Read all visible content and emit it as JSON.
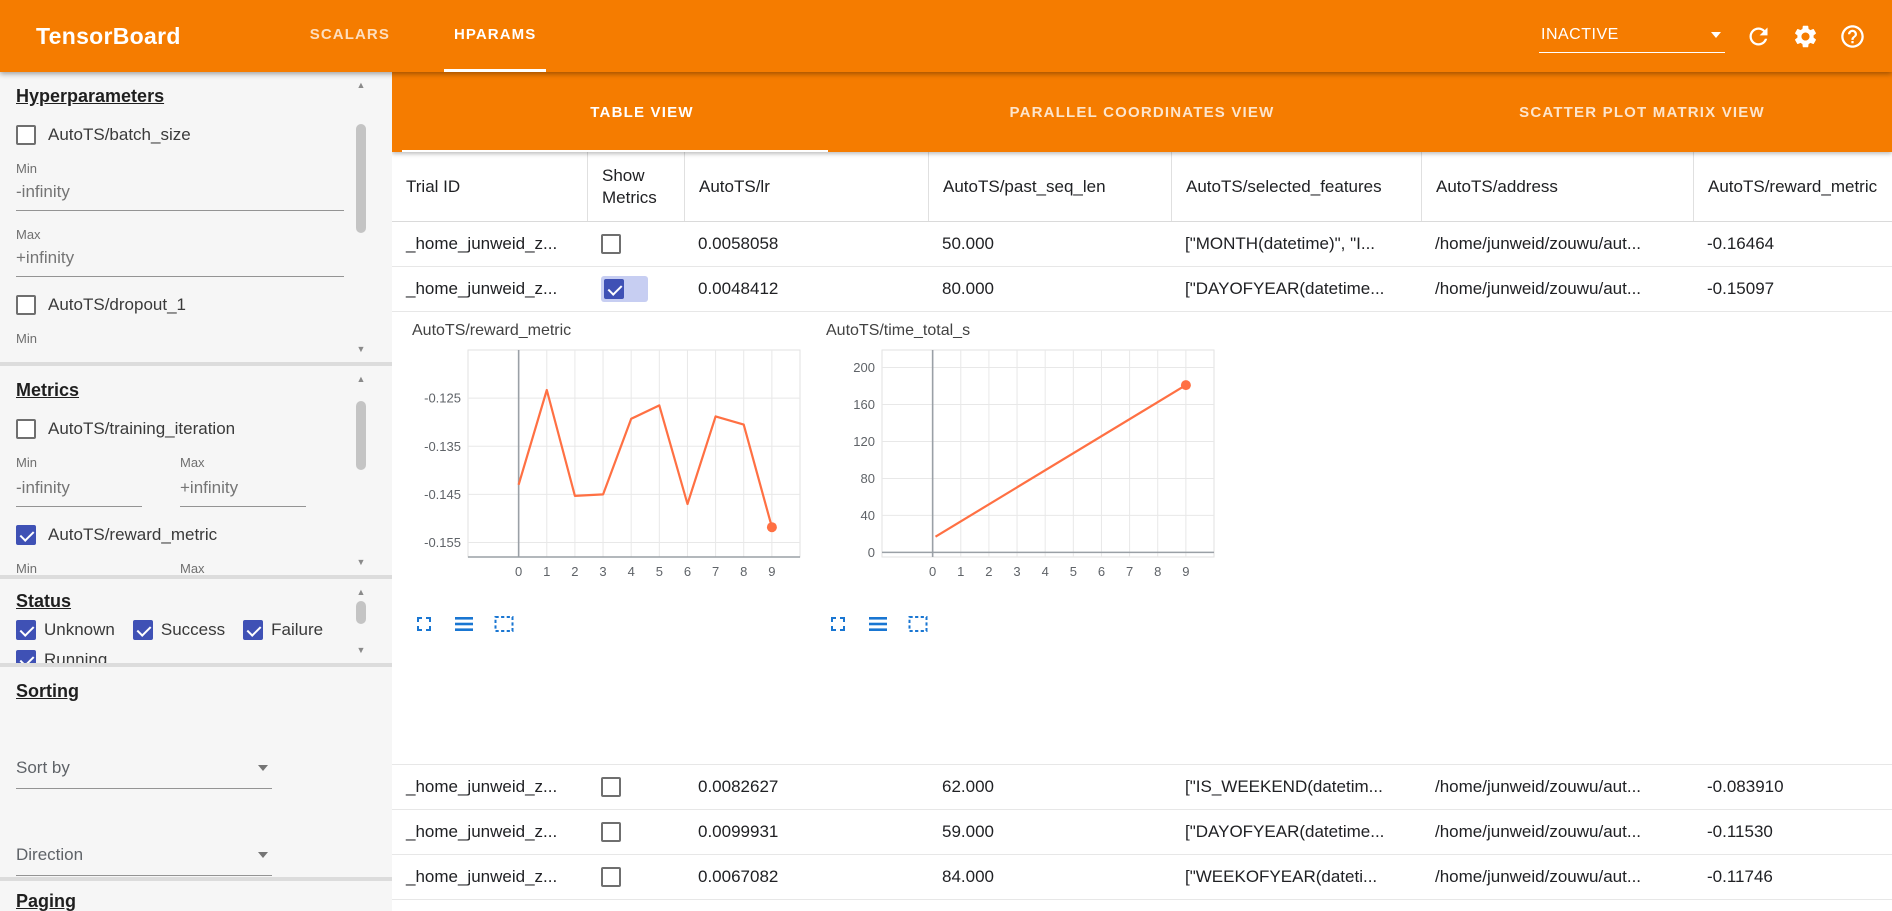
{
  "topbar": {
    "title": "TensorBoard",
    "tabs": [
      {
        "label": "SCALARS",
        "active": false
      },
      {
        "label": "HPARAMS",
        "active": true
      }
    ],
    "run_status": "INACTIVE"
  },
  "icons": {
    "topbar": [
      "chevron-down-icon",
      "reload-icon",
      "settings-gear-icon",
      "help-icon"
    ],
    "chart_actions": [
      "fullscreen-icon",
      "overview-lines-icon",
      "dashed-selection-box-icon"
    ]
  },
  "sidebar": {
    "hyperparameters": {
      "title": "Hyperparameters",
      "items": [
        {
          "label": "AutoTS/batch_size",
          "checked": false
        },
        {
          "label": "AutoTS/dropout_1",
          "checked": false
        }
      ],
      "min_label": "Min",
      "max_label": "Max",
      "min_value": "-infinity",
      "max_value": "+infinity"
    },
    "metrics": {
      "title": "Metrics",
      "items": [
        {
          "label": "AutoTS/training_iteration",
          "checked": false
        },
        {
          "label": "AutoTS/reward_metric",
          "checked": true
        }
      ],
      "min_label": "Min",
      "max_label": "Max",
      "min_value": "-infinity",
      "max_value": "+infinity"
    },
    "status": {
      "title": "Status",
      "items": [
        {
          "label": "Unknown",
          "checked": true
        },
        {
          "label": "Success",
          "checked": true
        },
        {
          "label": "Failure",
          "checked": true
        },
        {
          "label": "Running",
          "checked": true
        }
      ]
    },
    "sorting": {
      "title": "Sorting",
      "sort_by_label": "Sort by",
      "direction_label": "Direction"
    },
    "paging": {
      "title": "Paging"
    }
  },
  "main": {
    "view_tabs": [
      {
        "label": "TABLE VIEW",
        "active": true
      },
      {
        "label": "PARALLEL COORDINATES VIEW",
        "active": false
      },
      {
        "label": "SCATTER PLOT MATRIX VIEW",
        "active": false
      }
    ],
    "table": {
      "columns": [
        "Trial ID",
        "Show Metrics",
        "AutoTS/lr",
        "AutoTS/past_seq_len",
        "AutoTS/selected_features",
        "AutoTS/address",
        "AutoTS/reward_metric"
      ],
      "rows": [
        {
          "trial_id": "_home_junweid_z...",
          "show_metrics": false,
          "lr": "0.0058058",
          "past_seq_len": "50.000",
          "selected_features": "[\"MONTH(datetime)\", \"I...",
          "address": "/home/junweid/zouwu/aut...",
          "reward_metric": "-0.16464"
        },
        {
          "trial_id": "_home_junweid_z...",
          "show_metrics": true,
          "lr": "0.0048412",
          "past_seq_len": "80.000",
          "selected_features": "[\"DAYOFYEAR(datetime...",
          "address": "/home/junweid/zouwu/aut...",
          "reward_metric": "-0.15097"
        },
        {
          "trial_id": "_home_junweid_z...",
          "show_metrics": false,
          "lr": "0.0082627",
          "past_seq_len": "62.000",
          "selected_features": "[\"IS_WEEKEND(datetim...",
          "address": "/home/junweid/zouwu/aut...",
          "reward_metric": "-0.083910"
        },
        {
          "trial_id": "_home_junweid_z...",
          "show_metrics": false,
          "lr": "0.0099931",
          "past_seq_len": "59.000",
          "selected_features": "[\"DAYOFYEAR(datetime...",
          "address": "/home/junweid/zouwu/aut...",
          "reward_metric": "-0.11530"
        },
        {
          "trial_id": "_home_junweid_z...",
          "show_metrics": false,
          "lr": "0.0067082",
          "past_seq_len": "84.000",
          "selected_features": "[\"WEEKOFYEAR(dateti...",
          "address": "/home/junweid/zouwu/aut...",
          "reward_metric": "-0.11746"
        }
      ]
    }
  },
  "chart_data": [
    {
      "type": "line",
      "title": "AutoTS/reward_metric",
      "x": [
        0,
        1,
        2,
        3,
        4,
        5,
        6,
        7,
        8,
        9
      ],
      "values": [
        -0.143,
        -0.1233,
        -0.1453,
        -0.145,
        -0.1293,
        -0.1265,
        -0.147,
        -0.1288,
        -0.1305,
        -0.1518
      ],
      "xlim": [
        -1.8,
        10
      ],
      "ylim": [
        -0.158,
        -0.115
      ],
      "xticks": [
        0,
        1,
        2,
        3,
        4,
        5,
        6,
        7,
        8,
        9
      ],
      "yticks": [
        -0.125,
        -0.135,
        -0.145,
        -0.155
      ],
      "ytick_labels": [
        "-0.125",
        "-0.135",
        "-0.145",
        "-0.155"
      ],
      "axis_x": 0,
      "baseline": -0.158,
      "line_color": "#ff7043",
      "end_dot": true
    },
    {
      "type": "line",
      "title": "AutoTS/time_total_s",
      "x": [
        0.1,
        9
      ],
      "values": [
        17,
        181
      ],
      "xlim": [
        -1.8,
        10
      ],
      "ylim": [
        -5,
        219
      ],
      "xticks": [
        0,
        1,
        2,
        3,
        4,
        5,
        6,
        7,
        8,
        9
      ],
      "yticks": [
        0,
        40,
        80,
        120,
        160,
        200
      ],
      "ytick_labels": [
        "0",
        "40",
        "80",
        "120",
        "160",
        "200"
      ],
      "axis_x": 0,
      "baseline": 0,
      "line_color": "#ff7043",
      "end_dot": true
    }
  ],
  "colors": {
    "primary_orange": "#f57c00",
    "line_orange": "#ff7043",
    "checkbox_blue": "#3f51b5",
    "icon_blue": "#1976d2"
  }
}
